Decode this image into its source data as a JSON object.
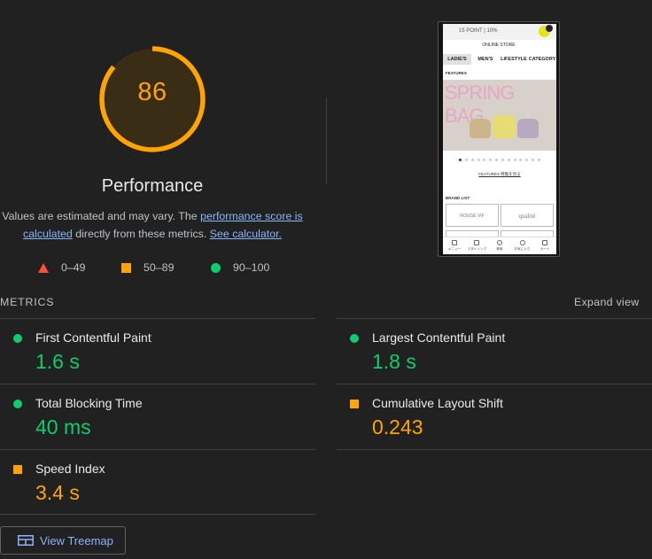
{
  "gauge": {
    "score": "86",
    "fraction": 0.86,
    "color": "#ffa400"
  },
  "title": "Performance",
  "description": {
    "prefix": "Values are estimated and may vary. The ",
    "link1": "performance score is calculated",
    "middle": " directly from these metrics. ",
    "link2": "See calculator."
  },
  "legend": [
    {
      "icon": "triangle-red-icon",
      "label": "0–49"
    },
    {
      "icon": "square-orange-icon",
      "label": "50–89"
    },
    {
      "icon": "circle-green-icon",
      "label": "90–100"
    }
  ],
  "thumbnail": {
    "banner": "15 POINT | 10%",
    "logo": "ONLINE STORE",
    "nav": [
      "LADIE'S",
      "MEN'S",
      "LIFESTYLE",
      "CATEGORY"
    ],
    "features_label": "FEATURES",
    "hero_title": "SPRING BAG",
    "features_link": "FEATURES 特集を見る",
    "brand_list": "BRAND LIST",
    "brand1": "ROUGE VIF",
    "brand2": "qualité",
    "tabbar": [
      "メニュー",
      "スタイリング",
      "検索",
      "お気に入り",
      "カート"
    ]
  },
  "metrics": {
    "section_title": "METRICS",
    "expand": "Expand view",
    "items": [
      {
        "label": "First Contentful Paint",
        "value": "1.6 s",
        "rating": "good"
      },
      {
        "label": "Largest Contentful Paint",
        "value": "1.8 s",
        "rating": "good"
      },
      {
        "label": "Total Blocking Time",
        "value": "40 ms",
        "rating": "good"
      },
      {
        "label": "Cumulative Layout Shift",
        "value": "0.243",
        "rating": "average"
      },
      {
        "label": "Speed Index",
        "value": "3.4 s",
        "rating": "average"
      }
    ]
  },
  "treemap_button": "View Treemap",
  "colors": {
    "good": "#0cce6b",
    "average": "#ffa400",
    "poor": "#ff4e42",
    "link": "#8ab4f8",
    "background": "#212121"
  }
}
